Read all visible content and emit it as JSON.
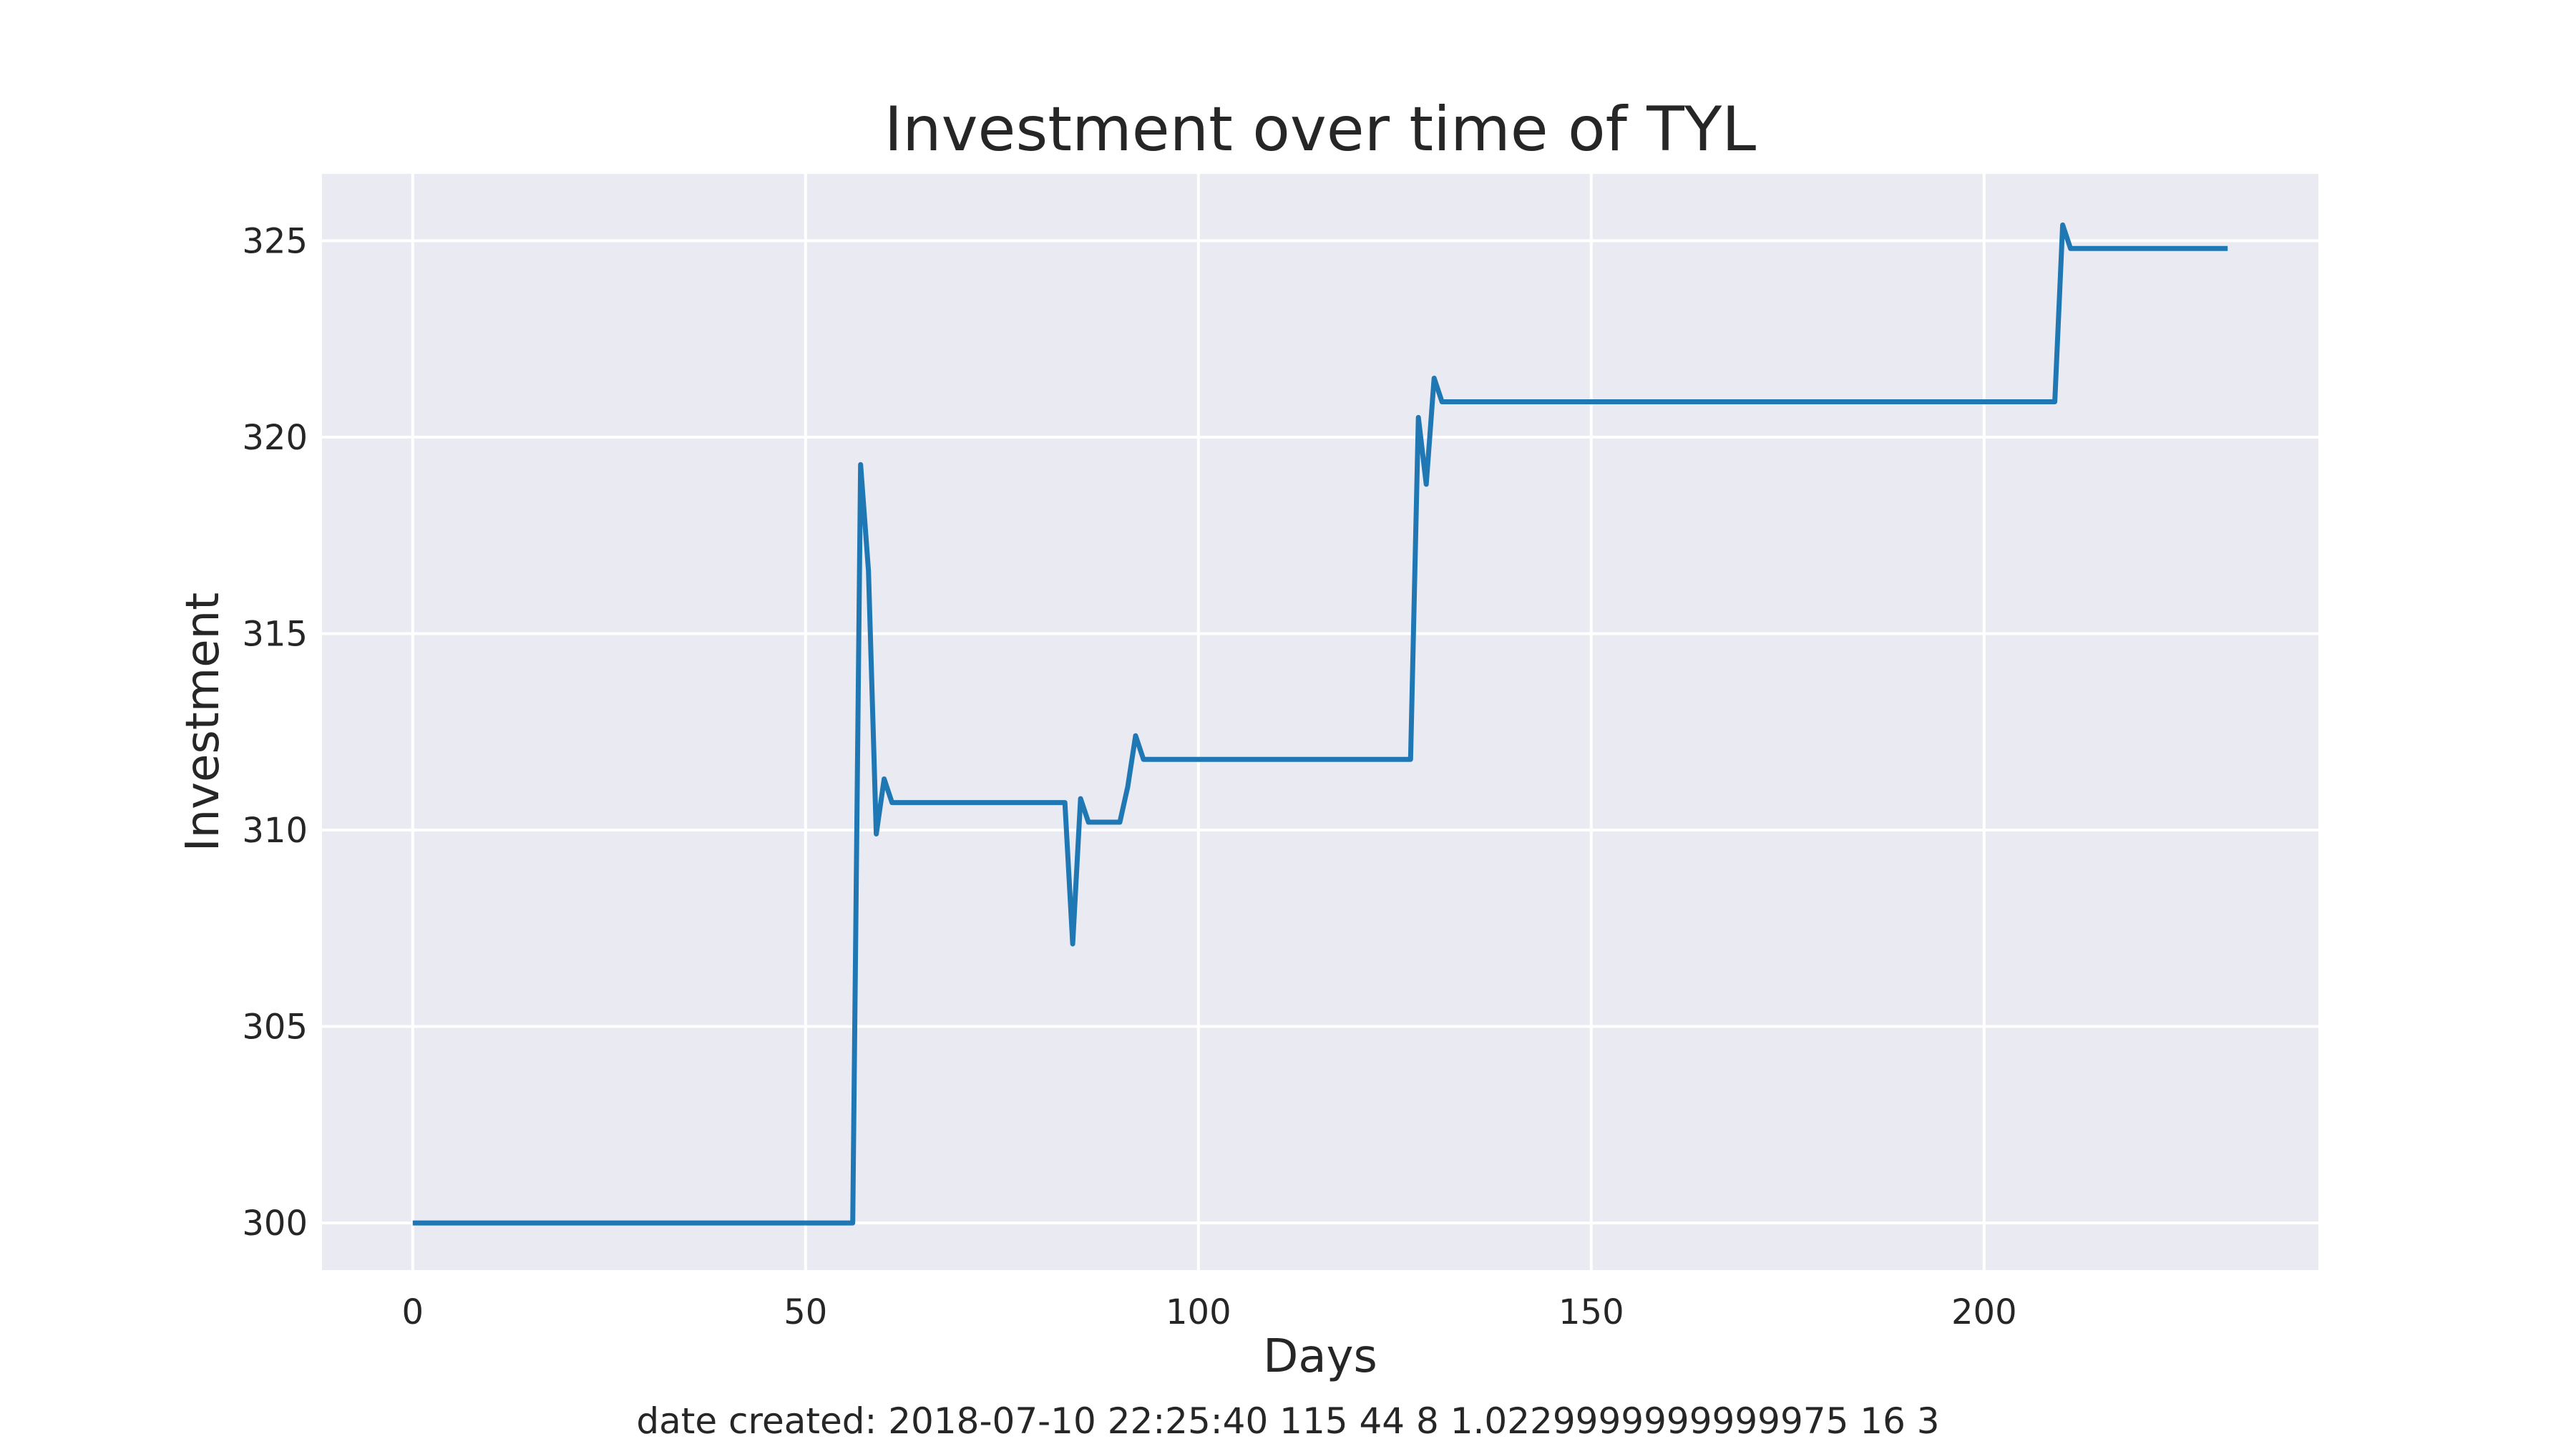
{
  "chart_data": {
    "type": "line",
    "title": "Investment over time of TYL",
    "xlabel": "Days",
    "ylabel": "Investment",
    "xlim": [
      -11.55,
      242.55
    ],
    "ylim": [
      298.8,
      326.7
    ],
    "xticks": [
      0,
      50,
      100,
      150,
      200
    ],
    "yticks": [
      300,
      305,
      310,
      315,
      320,
      325
    ],
    "grid": true,
    "legend": "none",
    "colors": {
      "line": "#1f77b4",
      "background": "#eaeaf2",
      "grid": "#ffffff"
    },
    "series": [
      {
        "x": [
          0,
          56,
          57,
          58,
          59,
          60,
          61,
          62,
          83,
          84,
          85,
          86,
          87,
          88,
          89,
          90,
          91,
          92,
          93,
          127,
          128,
          129,
          130,
          131,
          209,
          210,
          211,
          231
        ],
        "values": [
          300.0,
          300.0,
          319.3,
          316.6,
          309.9,
          311.3,
          310.7,
          310.7,
          310.7,
          307.1,
          310.8,
          310.2,
          310.2,
          310.2,
          310.2,
          310.2,
          311.1,
          312.4,
          311.8,
          311.8,
          320.5,
          318.8,
          321.5,
          320.9,
          320.9,
          325.4,
          324.8,
          324.8
        ]
      }
    ]
  },
  "footer": {
    "text": "date created: 2018-07-10 22:25:40 115 44 8 1.0229999999999975 16 3"
  }
}
